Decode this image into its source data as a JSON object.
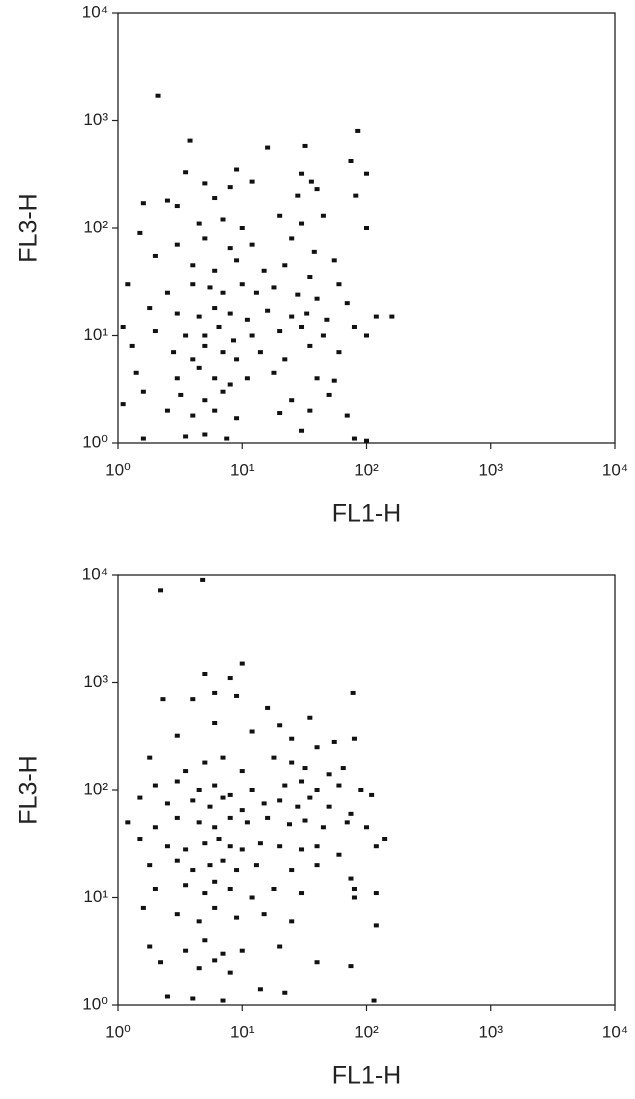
{
  "chart_data": [
    {
      "type": "scatter",
      "xlabel": "FL1-H",
      "ylabel": "FL3-H",
      "color": "#111111",
      "xscale": "log",
      "yscale": "log",
      "xlim": [
        1,
        10000
      ],
      "ylim": [
        1,
        10000
      ],
      "xticks": [
        {
          "value": 1,
          "label": "10⁰"
        },
        {
          "value": 10,
          "label": "10¹"
        },
        {
          "value": 100,
          "label": "10²"
        },
        {
          "value": 1000,
          "label": "10³"
        },
        {
          "value": 10000,
          "label": "10⁴"
        }
      ],
      "yticks": [
        {
          "value": 1,
          "label": "10⁰"
        },
        {
          "value": 10,
          "label": "10¹"
        },
        {
          "value": 100,
          "label": "10²"
        },
        {
          "value": 1000,
          "label": "10³"
        },
        {
          "value": 10000,
          "label": "10⁴"
        }
      ],
      "x": [
        2.1,
        3.8,
        16,
        32,
        85,
        3.5,
        9,
        12,
        30,
        36,
        75,
        100,
        5,
        8,
        6,
        28,
        40,
        82,
        2.5,
        1.6,
        3,
        4.5,
        7,
        10,
        20,
        30,
        45,
        100,
        1.5,
        3,
        5,
        8,
        12,
        25,
        38,
        55,
        2,
        4,
        6,
        9,
        15,
        22,
        35,
        60,
        1.2,
        2.5,
        4,
        5.5,
        7,
        10,
        13,
        18,
        28,
        40,
        70,
        120,
        160,
        1.8,
        3,
        4.5,
        6,
        8,
        11,
        16,
        25,
        33,
        48,
        80,
        1.1,
        2,
        3.5,
        5,
        6.5,
        8.5,
        12,
        20,
        30,
        45,
        100,
        1.3,
        2.8,
        4,
        5,
        7,
        9,
        14,
        22,
        35,
        60,
        1.4,
        3,
        4.5,
        6,
        8,
        11,
        18,
        40,
        55,
        1.6,
        3.2,
        5,
        7,
        25,
        50,
        1.1,
        2.5,
        4,
        6,
        9,
        20,
        35,
        70,
        1.6,
        3.5,
        5,
        7.5,
        30,
        80,
        100
      ],
      "y": [
        1700,
        650,
        560,
        580,
        800,
        330,
        350,
        270,
        320,
        270,
        420,
        320,
        260,
        240,
        190,
        200,
        230,
        200,
        180,
        170,
        160,
        110,
        120,
        100,
        130,
        110,
        130,
        100,
        90,
        70,
        80,
        65,
        70,
        80,
        60,
        50,
        55,
        45,
        40,
        50,
        40,
        45,
        35,
        30,
        30,
        25,
        30,
        28,
        25,
        30,
        25,
        28,
        24,
        22,
        20,
        15,
        15,
        18,
        16,
        15,
        18,
        16,
        14,
        17,
        15,
        16,
        14,
        12,
        12,
        11,
        10,
        10,
        12,
        9,
        10,
        11,
        12,
        10,
        10,
        8,
        7,
        6,
        8,
        7,
        6,
        7,
        6,
        8,
        7,
        4.5,
        4,
        5,
        4,
        3.5,
        4,
        4.5,
        4,
        3.8,
        3,
        2.8,
        2.5,
        3,
        2.5,
        2.8,
        2.3,
        2,
        1.8,
        2,
        1.7,
        1.9,
        2,
        1.8,
        1.1,
        1.15,
        1.2,
        1.1,
        1.3,
        1.1,
        1.05
      ]
    },
    {
      "type": "scatter",
      "xlabel": "FL1-H",
      "ylabel": "FL3-H",
      "color": "#111111",
      "xscale": "log",
      "yscale": "log",
      "xlim": [
        1,
        10000
      ],
      "ylim": [
        1,
        10000
      ],
      "xticks": [
        {
          "value": 1,
          "label": "10⁰"
        },
        {
          "value": 10,
          "label": "10¹"
        },
        {
          "value": 100,
          "label": "10²"
        },
        {
          "value": 1000,
          "label": "10³"
        },
        {
          "value": 10000,
          "label": "10⁴"
        }
      ],
      "yticks": [
        {
          "value": 1,
          "label": "10⁰"
        },
        {
          "value": 10,
          "label": "10¹"
        },
        {
          "value": 100,
          "label": "10²"
        },
        {
          "value": 1000,
          "label": "10³"
        },
        {
          "value": 10000,
          "label": "10⁴"
        }
      ],
      "x": [
        2.2,
        4.8,
        10,
        5,
        8,
        2.3,
        4,
        6,
        9,
        16,
        20,
        35,
        78,
        3,
        6,
        12,
        25,
        40,
        55,
        80,
        1.8,
        3.5,
        5,
        7,
        10,
        18,
        25,
        32,
        50,
        65,
        2,
        3,
        4.5,
        6,
        8,
        12,
        22,
        30,
        40,
        60,
        90,
        110,
        1.5,
        2.5,
        4,
        5.5,
        7,
        10,
        15,
        20,
        28,
        35,
        50,
        75,
        1.2,
        2,
        3,
        4.5,
        6,
        8,
        11,
        16,
        24,
        32,
        45,
        70,
        100,
        140,
        1.5,
        2.5,
        3.5,
        5,
        6.5,
        8,
        10,
        14,
        20,
        30,
        40,
        60,
        120,
        1.8,
        3,
        4,
        5.5,
        7,
        9,
        13,
        25,
        40,
        75,
        2,
        3.5,
        5,
        6,
        8,
        12,
        18,
        30,
        80,
        120,
        1.6,
        3,
        4.5,
        6,
        9,
        15,
        25,
        1.8,
        3.5,
        5,
        7,
        10,
        20,
        2.2,
        4.5,
        6,
        8,
        40,
        75,
        2.5,
        4,
        7,
        14,
        22,
        120,
        80,
        115
      ],
      "y": [
        7200,
        9000,
        1500,
        1200,
        1100,
        700,
        700,
        800,
        750,
        580,
        400,
        470,
        800,
        320,
        420,
        350,
        300,
        250,
        280,
        300,
        200,
        150,
        180,
        200,
        150,
        200,
        180,
        160,
        140,
        160,
        110,
        120,
        100,
        110,
        90,
        100,
        110,
        120,
        100,
        110,
        100,
        90,
        85,
        75,
        80,
        70,
        85,
        65,
        75,
        80,
        70,
        85,
        70,
        60,
        50,
        45,
        55,
        50,
        45,
        55,
        50,
        55,
        48,
        52,
        45,
        50,
        45,
        35,
        35,
        30,
        28,
        32,
        35,
        30,
        28,
        32,
        30,
        28,
        30,
        25,
        30,
        20,
        22,
        18,
        20,
        22,
        18,
        20,
        18,
        20,
        15,
        12,
        13,
        11,
        14,
        12,
        10,
        12,
        11,
        12,
        11,
        8,
        7,
        6,
        8,
        6.5,
        7,
        6,
        3.5,
        3.2,
        4,
        3,
        3.2,
        3.5,
        2.5,
        2.2,
        2.6,
        2,
        2.5,
        2.3,
        1.2,
        1.15,
        1.1,
        1.4,
        1.3,
        5.5,
        10,
        1.1
      ]
    }
  ]
}
